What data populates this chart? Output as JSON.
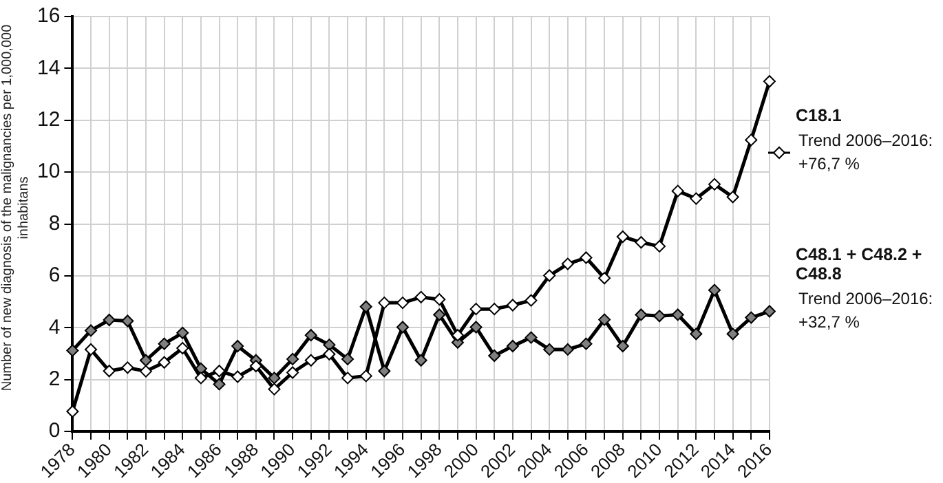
{
  "chart_data": {
    "type": "line",
    "ylabel": "Number of new diagnosis of the malignancies per 1,000,000 inhabitans",
    "categories": [
      "1978",
      null,
      "1980",
      null,
      "1982",
      null,
      "1984",
      null,
      "1986",
      null,
      "1988",
      null,
      "1990",
      null,
      "1992",
      null,
      "1994",
      null,
      "1996",
      null,
      "1998",
      null,
      "2000",
      null,
      "2002",
      null,
      "2004",
      null,
      "2006",
      null,
      "2008",
      null,
      "2010",
      null,
      "2012",
      null,
      "2014",
      null,
      "2016"
    ],
    "series": [
      {
        "name": "C18.1",
        "color": "#ffffff",
        "values": [
          0.77,
          3.16,
          2.33,
          2.46,
          2.32,
          2.66,
          3.21,
          2.06,
          2.33,
          2.11,
          2.52,
          1.63,
          2.27,
          2.74,
          2.98,
          2.06,
          2.14,
          4.96,
          4.96,
          5.18,
          5.09,
          3.71,
          4.72,
          4.72,
          4.87,
          5.05,
          6.01,
          6.46,
          6.7,
          5.91,
          7.51,
          7.29,
          7.14,
          9.27,
          8.98,
          9.53,
          9.04,
          11.24,
          13.5
        ]
      },
      {
        "name": "C48.1 + C48.2 + C48.8",
        "color": "#7f7f7f",
        "values": [
          3.12,
          3.89,
          4.3,
          4.26,
          2.74,
          3.38,
          3.8,
          2.42,
          1.82,
          3.29,
          2.74,
          2.06,
          2.79,
          3.71,
          3.34,
          2.79,
          4.81,
          2.33,
          4.02,
          2.74,
          4.5,
          3.43,
          4.02,
          2.92,
          3.29,
          3.62,
          3.16,
          3.16,
          3.38,
          4.31,
          3.29,
          4.5,
          4.45,
          4.5,
          3.76,
          5.45,
          3.76,
          4.39,
          4.63
        ]
      }
    ],
    "annotations": [
      "Trend 2006–2016: +76,7 %",
      "Trend 2006–2016: +32,7 %"
    ],
    "ylim": [
      0,
      16
    ],
    "yticks": [
      0,
      2,
      4,
      6,
      8,
      10,
      12,
      14,
      16
    ],
    "grid": true,
    "legend": "right",
    "marker": "diamond",
    "line_style": "solid"
  }
}
